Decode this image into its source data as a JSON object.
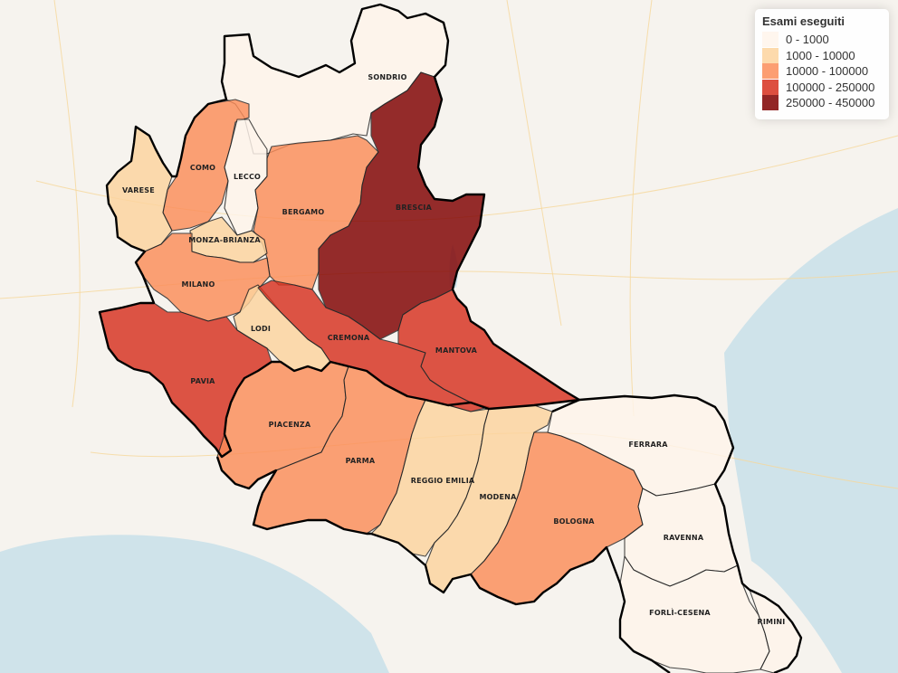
{
  "legend": {
    "title": "Esami eseguiti",
    "classes": [
      {
        "label": "0 - 1000",
        "color": "#fff5eb"
      },
      {
        "label": "1000 - 10000",
        "color": "#fdd49e"
      },
      {
        "label": "10000 - 100000",
        "color": "#fc8d59"
      },
      {
        "label": "100000 - 250000",
        "color": "#d7301f"
      },
      {
        "label": "250000 - 450000",
        "color": "#7f0000"
      }
    ]
  },
  "provinces": [
    {
      "name": "SONDRIO",
      "class": 0
    },
    {
      "name": "COMO",
      "class": 2
    },
    {
      "name": "LECCO",
      "class": 0
    },
    {
      "name": "VARESE",
      "class": 1
    },
    {
      "name": "BERGAMO",
      "class": 2
    },
    {
      "name": "BRESCIA",
      "class": 4
    },
    {
      "name": "MONZA-BRIANZA",
      "class": 1
    },
    {
      "name": "MILANO",
      "class": 2
    },
    {
      "name": "LODI",
      "class": 1
    },
    {
      "name": "CREMONA",
      "class": 3
    },
    {
      "name": "MANTOVA",
      "class": 3
    },
    {
      "name": "PAVIA",
      "class": 3
    },
    {
      "name": "PIACENZA",
      "class": 2
    },
    {
      "name": "PARMA",
      "class": 2
    },
    {
      "name": "REGGIO EMILIA",
      "class": 1
    },
    {
      "name": "MODENA",
      "class": 1
    },
    {
      "name": "BOLOGNA",
      "class": 2
    },
    {
      "name": "FERRARA",
      "class": 0
    },
    {
      "name": "RAVENNA",
      "class": 0
    },
    {
      "name": "FORLÌ-CESENA",
      "class": 0
    },
    {
      "name": "RIMINI",
      "class": 0
    }
  ]
}
